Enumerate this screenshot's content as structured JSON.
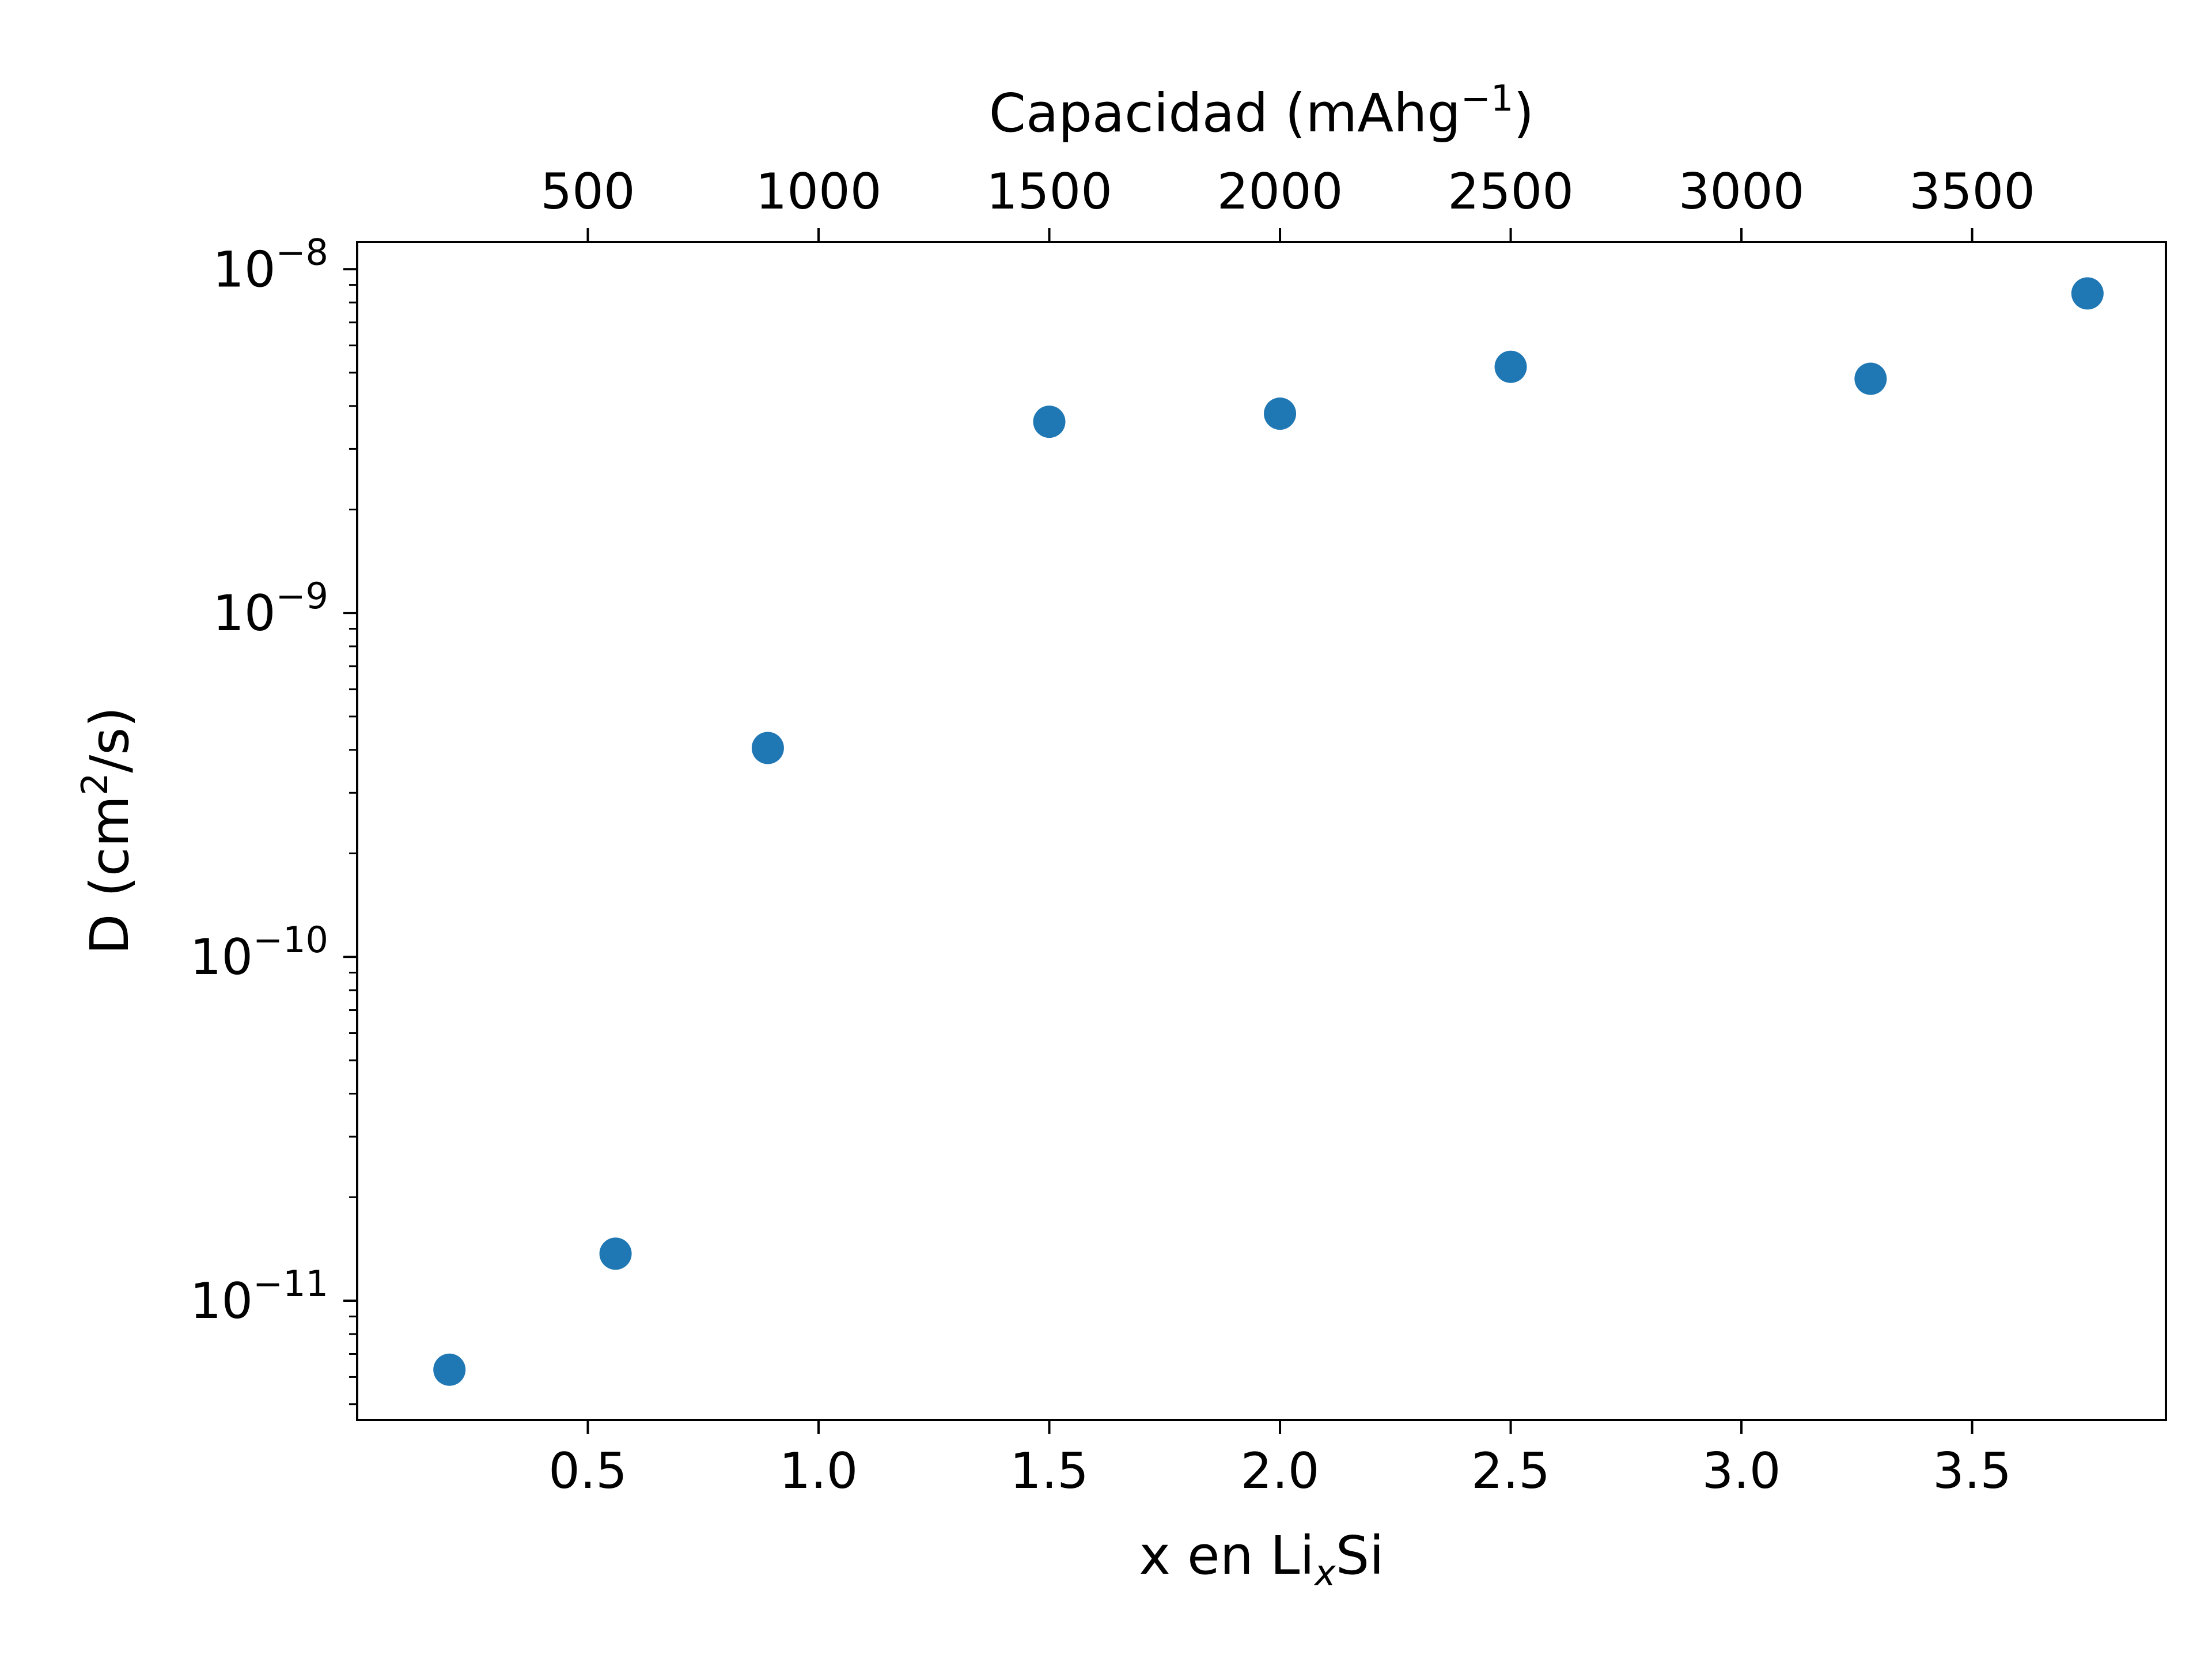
{
  "chart_data": {
    "type": "scatter",
    "title": "",
    "xlabel": {
      "main": "x en Li",
      "sub": "x",
      "tail": "Si"
    },
    "ylabel": {
      "main": "D (cm",
      "sup": "2",
      "tail": "/s)"
    },
    "top_xlabel": {
      "main": "Capacidad (mAhg",
      "sup": "−1",
      "tail": ")"
    },
    "xlim": [
      0.0,
      3.92
    ],
    "ylim": [
      4.5e-12,
      1.2e-08
    ],
    "yscale": "log",
    "grid": false,
    "x_ticks": [
      {
        "value": 0.5,
        "label": "0.5"
      },
      {
        "value": 1.0,
        "label": "1.0"
      },
      {
        "value": 1.5,
        "label": "1.5"
      },
      {
        "value": 2.0,
        "label": "2.0"
      },
      {
        "value": 2.5,
        "label": "2.5"
      },
      {
        "value": 3.0,
        "label": "3.0"
      },
      {
        "value": 3.5,
        "label": "3.5"
      }
    ],
    "top_x_ticks": [
      {
        "value": 500,
        "label": "500"
      },
      {
        "value": 1000,
        "label": "1000"
      },
      {
        "value": 1500,
        "label": "1500"
      },
      {
        "value": 2000,
        "label": "2000"
      },
      {
        "value": 2500,
        "label": "2500"
      },
      {
        "value": 3000,
        "label": "3000"
      },
      {
        "value": 3500,
        "label": "3500"
      }
    ],
    "top_x_range": [
      0,
      3750
    ],
    "y_ticks": [
      {
        "value": 1e-11,
        "base": "10",
        "exp": "−11"
      },
      {
        "value": 1e-10,
        "base": "10",
        "exp": "−10"
      },
      {
        "value": 1e-09,
        "base": "10",
        "exp": "−9"
      },
      {
        "value": 1e-08,
        "base": "10",
        "exp": "−8"
      }
    ],
    "series": [
      {
        "color": "#1f77b4",
        "points": [
          {
            "x": 0.2,
            "y": 6.3e-12
          },
          {
            "x": 0.56,
            "y": 1.37e-11
          },
          {
            "x": 0.89,
            "y": 4.05e-10
          },
          {
            "x": 1.5,
            "y": 3.6e-09
          },
          {
            "x": 2.0,
            "y": 3.8e-09
          },
          {
            "x": 2.5,
            "y": 5.2e-09
          },
          {
            "x": 3.28,
            "y": 4.8e-09
          },
          {
            "x": 3.75,
            "y": 8.5e-09
          }
        ]
      }
    ]
  }
}
